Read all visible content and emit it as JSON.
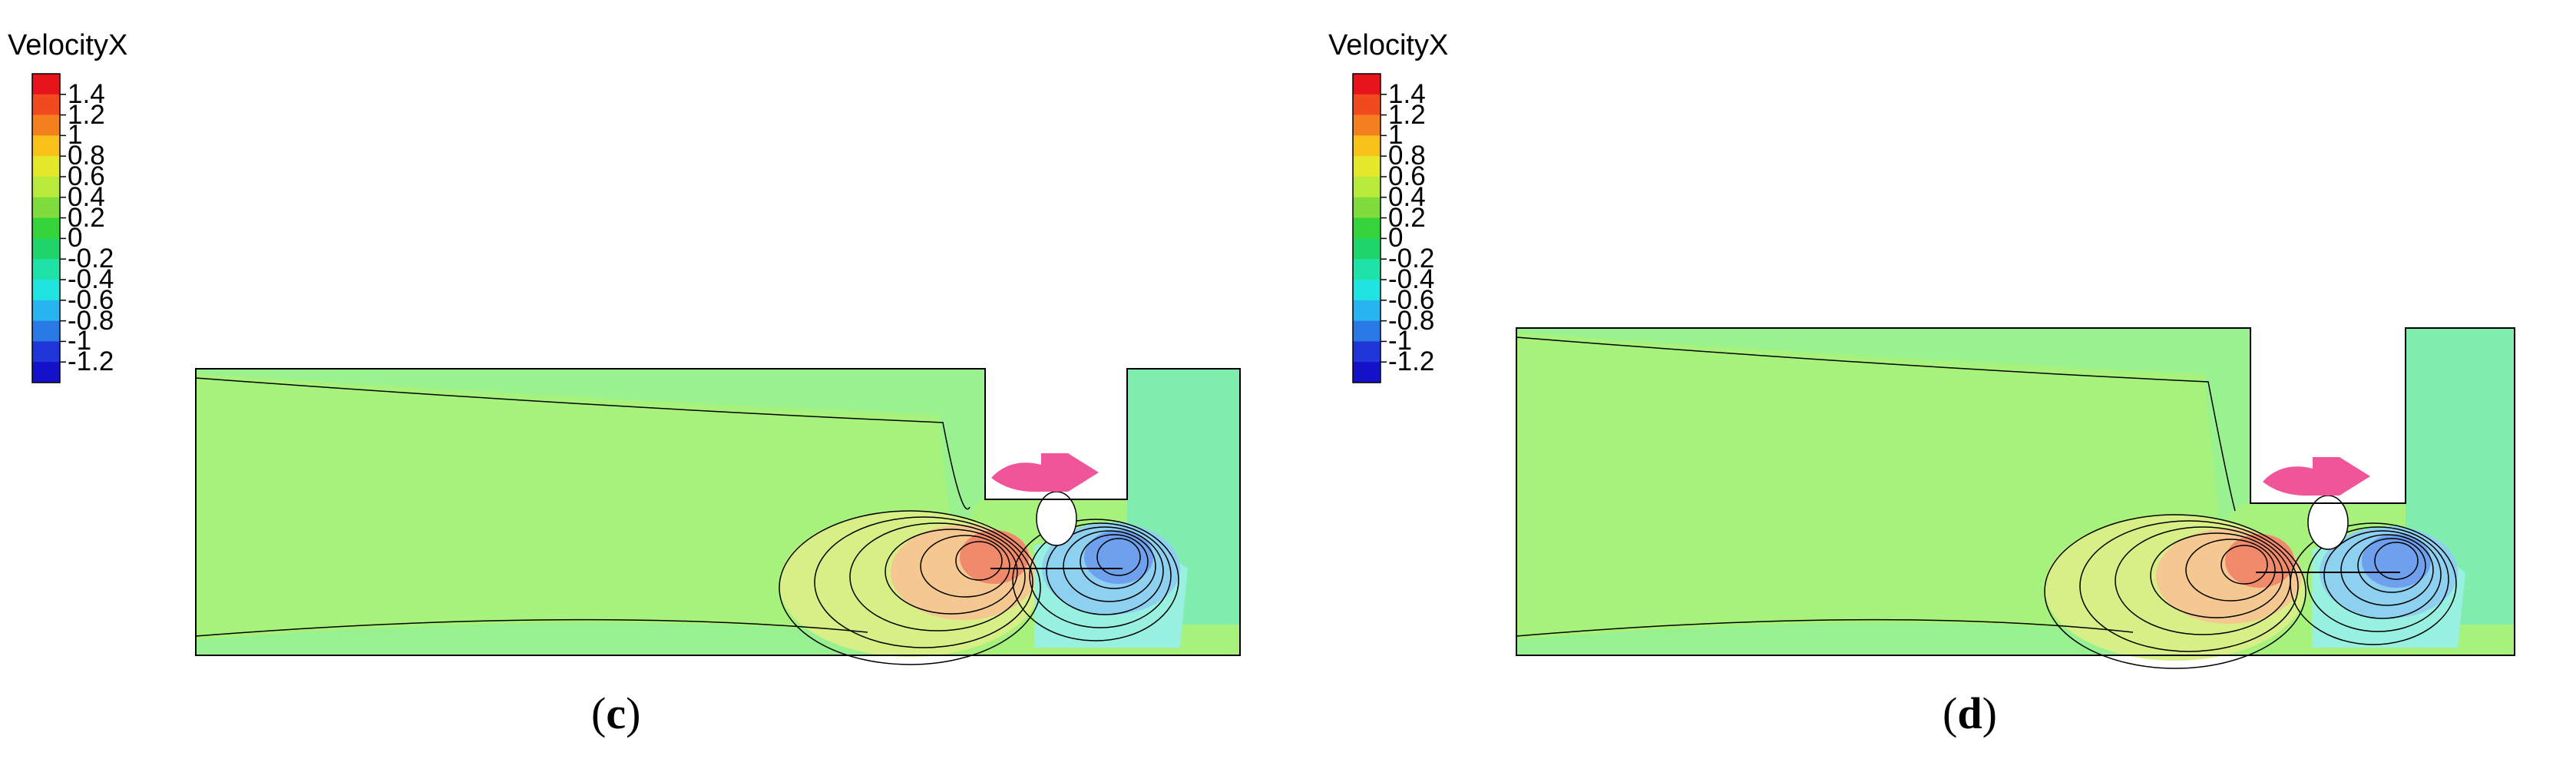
{
  "chart_data": [
    {
      "type": "heatmap",
      "panel_label_open": "(",
      "panel_label_letter": "c",
      "panel_label_close": ")",
      "legend_title": "VelocityX",
      "colorbar": {
        "levels": [
          "1.4",
          "1.2",
          "1",
          "0.8",
          "0.6",
          "0.4",
          "0.2",
          "0",
          "-0.2",
          "-0.4",
          "-0.6",
          "-0.8",
          "-1",
          "-1.2"
        ],
        "colors": [
          "#e8141c",
          "#f04a1e",
          "#f5801f",
          "#f8c21a",
          "#e4e82a",
          "#b8ea3c",
          "#7fdc3c",
          "#35d43a",
          "#1fd56a",
          "#1ee2a8",
          "#20e4e0",
          "#28b4f0",
          "#2a7ae6",
          "#2036d8",
          "#1412c8"
        ]
      },
      "gap_width": 0.25
    },
    {
      "type": "heatmap",
      "panel_label_open": "(",
      "panel_label_letter": "d",
      "panel_label_close": ")",
      "legend_title": "VelocityX",
      "colorbar": {
        "levels": [
          "1.4",
          "1.2",
          "1",
          "0.8",
          "0.6",
          "0.4",
          "0.2",
          "0",
          "-0.2",
          "-0.4",
          "-0.6",
          "-0.8",
          "-1",
          "-1.2"
        ],
        "colors": [
          "#e8141c",
          "#f04a1e",
          "#f5801f",
          "#f8c21a",
          "#e4e82a",
          "#b8ea3c",
          "#7fdc3c",
          "#35d43a",
          "#1fd56a",
          "#1ee2a8",
          "#20e4e0",
          "#28b4f0",
          "#2a7ae6",
          "#2036d8",
          "#1412c8"
        ]
      },
      "gap_width": 0.25
    }
  ],
  "field_colors": {
    "background_flow": "#a6f27c",
    "outlet_flow": "#80ecae",
    "boundary_layer": "#8ef0a0",
    "positive_peak": "#f08a6a",
    "positive_mid": "#f4c890",
    "positive_low": "#d8ee86",
    "negative_peak": "#6ea0ee",
    "negative_mid": "#8ed0f0",
    "negative_low": "#98f0e0",
    "propeller": "#f0559a",
    "contour_line": "#000000"
  }
}
